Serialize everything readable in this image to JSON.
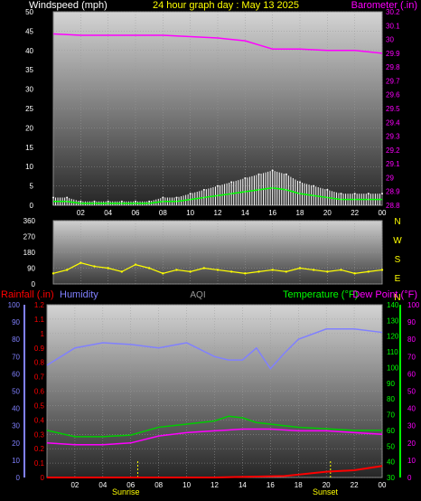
{
  "header": {
    "left_title": "Windspeed (mph)",
    "center_title": "24 hour graph day : May 13 2025",
    "right_title": "Barometer (.in)"
  },
  "colors": {
    "windspeed": "#ffffff",
    "gust": "#dddddd",
    "wind_avg": "#00ff00",
    "barometer": "#ff00ff",
    "direction": "#ffff00",
    "humidity": "#8080ff",
    "temperature": "#00cc00",
    "dewpoint": "#ff00ff",
    "rainfall": "#ff0000",
    "aqi": "#999999"
  },
  "chart_data": [
    {
      "type": "line",
      "panel": "wind-barometer",
      "x_ticks": [
        "02",
        "04",
        "06",
        "08",
        "10",
        "12",
        "14",
        "16",
        "18",
        "20",
        "22",
        "00"
      ],
      "y_left_ticks": [
        "0",
        "5",
        "10",
        "15",
        "20",
        "25",
        "30",
        "35",
        "40",
        "45",
        "50"
      ],
      "y_left_range": [
        0,
        50
      ],
      "y_right_ticks": [
        "28.8",
        "28.9",
        "29",
        "29.1",
        "29.2",
        "29.3",
        "29.4",
        "29.5",
        "29.6",
        "29.7",
        "29.8",
        "29.9",
        "30",
        "30.1",
        "30.2"
      ],
      "y_right_range": [
        28.8,
        30.2
      ],
      "series": [
        {
          "name": "Windspeed (mph)",
          "axis": "left",
          "x": [
            0,
            1,
            2,
            3,
            4,
            5,
            6,
            7,
            8,
            9,
            10,
            11,
            12,
            13,
            14,
            15,
            16,
            17,
            18,
            19,
            20,
            21,
            22,
            23,
            24
          ],
          "y": [
            2,
            2,
            1,
            1,
            1,
            1,
            1,
            1,
            2,
            2,
            3,
            4,
            5,
            6,
            7,
            8,
            9,
            8,
            6,
            5,
            4,
            3,
            3,
            3,
            3
          ]
        },
        {
          "name": "Barometer (.in)",
          "axis": "right",
          "x": [
            0,
            2,
            4,
            6,
            8,
            10,
            12,
            14,
            15,
            16,
            17,
            18,
            20,
            22,
            24
          ],
          "y": [
            30.04,
            30.03,
            30.03,
            30.03,
            30.03,
            30.02,
            30.01,
            29.99,
            29.96,
            29.93,
            29.93,
            29.93,
            29.92,
            29.92,
            29.9
          ]
        }
      ]
    },
    {
      "type": "scatter",
      "panel": "wind-direction",
      "y_ticks": [
        "0",
        "90",
        "180",
        "270",
        "360"
      ],
      "y_range": [
        0,
        360
      ],
      "compass": [
        "N",
        "W",
        "S",
        "E",
        "N"
      ],
      "series": [
        {
          "name": "Wind direction",
          "x": [
            0,
            1,
            2,
            3,
            4,
            5,
            6,
            7,
            8,
            9,
            10,
            11,
            12,
            13,
            14,
            15,
            16,
            17,
            18,
            19,
            20,
            21,
            22,
            23,
            24
          ],
          "y": [
            60,
            80,
            120,
            100,
            90,
            70,
            110,
            90,
            60,
            80,
            70,
            90,
            80,
            70,
            60,
            70,
            80,
            70,
            90,
            80,
            70,
            80,
            60,
            70,
            80
          ]
        }
      ]
    },
    {
      "type": "line",
      "panel": "temp-humidity-rain",
      "titles": {
        "rain": "Rainfall (.in)",
        "humidity": "Humidity",
        "aqi": "AQI",
        "temperature": "Temperature (°F)",
        "dewpoint": "Dew Point (°F)"
      },
      "markers": [
        "Sunrise",
        "Sunset"
      ],
      "rain_ticks": [
        "0",
        "0.1",
        "0.2",
        "0.3",
        "0.4",
        "0.5",
        "0.6",
        "0.7",
        "0.8",
        "0.9",
        "1",
        "1.1",
        "1.2"
      ],
      "humidity_ticks": [
        "0",
        "10",
        "20",
        "30",
        "40",
        "50",
        "60",
        "70",
        "80",
        "90",
        "100"
      ],
      "temp_ticks": [
        "30",
        "40",
        "50",
        "60",
        "70",
        "80",
        "90",
        "100",
        "110",
        "120",
        "130",
        "140"
      ],
      "dew_ticks": [
        "0",
        "10",
        "20",
        "30",
        "40",
        "50",
        "60",
        "70",
        "80",
        "90",
        "100"
      ],
      "series": [
        {
          "name": "Humidity",
          "x": [
            0,
            2,
            4,
            6,
            8,
            10,
            12,
            13,
            14,
            15,
            16,
            17,
            18,
            20,
            22,
            24
          ],
          "y": [
            65,
            75,
            78,
            77,
            75,
            78,
            70,
            68,
            68,
            75,
            63,
            72,
            80,
            86,
            86,
            84
          ]
        },
        {
          "name": "Temperature (°F)",
          "x": [
            0,
            2,
            4,
            6,
            8,
            10,
            12,
            13,
            14,
            15,
            16,
            17,
            18,
            20,
            22,
            24
          ],
          "y": [
            60,
            56,
            56,
            57,
            62,
            64,
            66,
            69,
            68,
            65,
            64,
            63,
            62,
            61,
            60,
            60
          ]
        },
        {
          "name": "Dew Point (°F)",
          "x": [
            0,
            2,
            4,
            6,
            8,
            10,
            12,
            14,
            16,
            18,
            20,
            22,
            24
          ],
          "y": [
            20,
            19,
            19,
            20,
            24,
            26,
            27,
            28,
            28,
            27,
            27,
            26,
            25
          ]
        },
        {
          "name": "Rainfall (.in)",
          "x": [
            0,
            6,
            12,
            17,
            18,
            20,
            22,
            24
          ],
          "y": [
            0,
            0,
            0,
            0.01,
            0.02,
            0.04,
            0.05,
            0.08
          ]
        }
      ]
    }
  ]
}
